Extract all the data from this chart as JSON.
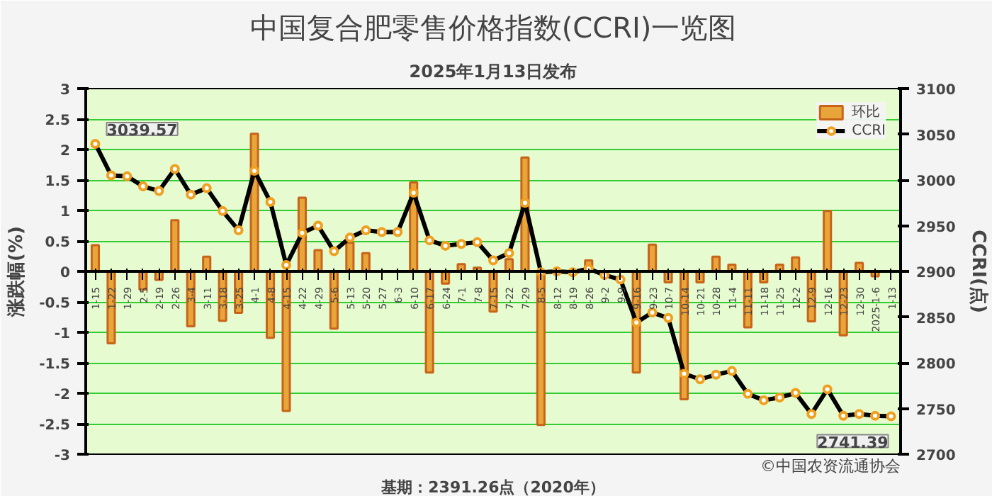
{
  "chart_data": {
    "type": "bar",
    "title": "中国复合肥零售价格指数(CCRI)一览图",
    "subtitle": "2025年1月13日发布",
    "ylabel": "涨跌幅(%)",
    "y2label": "CCRI(点)",
    "annotations": [
      "基期：2391.26点（2020年）",
      "©中国农资流通协会"
    ],
    "categories": [
      "1-15",
      "1-22",
      "1-29",
      "2-5",
      "2-19",
      "2-26",
      "3-4",
      "3-11",
      "3-18",
      "3-25",
      "4-1",
      "4-8",
      "4-15",
      "4-22",
      "4-29",
      "5-6",
      "5-13",
      "5-20",
      "5-27",
      "6-3",
      "6-10",
      "6-17",
      "6-24",
      "7-1",
      "7-8",
      "7-15",
      "7-22",
      "7-29",
      "8-5",
      "8-12",
      "8-19",
      "8-26",
      "9-2",
      "9-9",
      "9-16",
      "9-23",
      "10-7",
      "10-14",
      "10-21",
      "10-28",
      "11-4",
      "11-11",
      "11-18",
      "11-25",
      "12-2",
      "12-9",
      "12-16",
      "12-23",
      "12-30",
      "2025-1-6",
      "1-13"
    ],
    "series": [
      {
        "name": "环比",
        "color": "#e8a53a",
        "values": [
          0.43,
          -1.18,
          null,
          -0.3,
          -0.14,
          0.84,
          -0.9,
          0.24,
          -0.81,
          -0.68,
          2.26,
          -1.09,
          -2.29,
          1.21,
          0.35,
          -0.94,
          0.47,
          0.3,
          null,
          null,
          1.46,
          -1.66,
          -0.2,
          0.12,
          0.06,
          -0.66,
          0.2,
          1.87,
          -2.52,
          null,
          null,
          0.18,
          null,
          null,
          -1.66,
          0.44,
          -0.18,
          -2.1,
          -0.18,
          0.24,
          0.11,
          -0.92,
          -0.18,
          0.11,
          0.23,
          -0.82,
          0.99,
          -1.05,
          0.14,
          -0.08,
          null
        ]
      },
      {
        "name": "CCRI",
        "type": "line",
        "axis": "y2",
        "color": "#000000",
        "marker": "circle",
        "values": [
          3039.57,
          3005,
          3004,
          2993,
          2988,
          3012,
          2984,
          2991,
          2966,
          2945,
          3010,
          2976,
          2907,
          2942,
          2950,
          2922,
          2937,
          2945,
          2943,
          2943,
          2986,
          2934,
          2928,
          2930,
          2932,
          2912,
          2920,
          2975,
          2899,
          2900,
          2899,
          2903,
          2896,
          2891,
          2844,
          2855,
          2849,
          2788,
          2782,
          2787,
          2791,
          2766,
          2759,
          2762,
          2767,
          2744,
          2771,
          2742,
          2744,
          2742,
          2741.39
        ],
        "value_labels": [
          "3039.57",
          null,
          null,
          null,
          null,
          null,
          null,
          null,
          null,
          null,
          null,
          null,
          null,
          null,
          null,
          null,
          null,
          null,
          null,
          null,
          null,
          null,
          null,
          null,
          null,
          null,
          null,
          null,
          null,
          null,
          null,
          null,
          null,
          null,
          null,
          null,
          null,
          null,
          null,
          null,
          null,
          null,
          null,
          null,
          null,
          null,
          null,
          null,
          null,
          null,
          "2741.39"
        ]
      }
    ],
    "ylim": [
      -3,
      3
    ],
    "yticks": [
      -3,
      -2.5,
      -2,
      -1.5,
      -1,
      -0.5,
      0,
      0.5,
      1,
      1.5,
      2,
      2.5,
      3
    ],
    "y2lim": [
      2700,
      3100
    ],
    "y2ticks": [
      2700,
      2750,
      2800,
      2850,
      2900,
      2950,
      3000,
      3050,
      3100
    ],
    "grid": "y",
    "legend": "top right"
  }
}
